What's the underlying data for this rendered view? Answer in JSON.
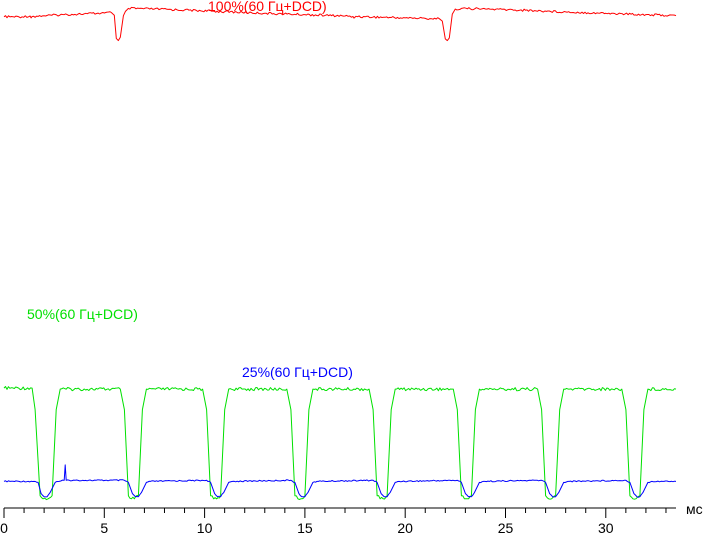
{
  "chart_data": {
    "type": "line",
    "xlabel": "мс",
    "xlim": [
      0,
      33.5
    ],
    "x_ticks": [
      "0",
      "5",
      "10",
      "15",
      "20",
      "25",
      "30"
    ],
    "grid": false,
    "series": [
      {
        "name": "100%(60 Гц+DCD)",
        "color": "#ff0000",
        "points": [
          [
            0,
            18.0
          ],
          [
            0.9,
            18.0
          ],
          [
            1.3,
            18.15
          ],
          [
            1.35,
            17.8
          ],
          [
            1.4,
            18.05
          ],
          [
            2.0,
            18.2
          ],
          [
            3.0,
            18.4
          ],
          [
            4.0,
            18.55
          ],
          [
            5.0,
            18.7
          ],
          [
            5.35,
            18.8
          ],
          [
            5.5,
            18.3
          ],
          [
            5.6,
            14.0
          ],
          [
            5.7,
            13.6
          ],
          [
            5.8,
            14.2
          ],
          [
            5.95,
            18.2
          ],
          [
            6.05,
            19.0
          ],
          [
            6.2,
            19.55
          ],
          [
            7.5,
            19.45
          ],
          [
            9.0,
            19.25
          ],
          [
            11.0,
            18.95
          ],
          [
            13.0,
            18.65
          ],
          [
            15.0,
            18.4
          ],
          [
            17.0,
            18.15
          ],
          [
            17.4,
            18.05
          ],
          [
            17.45,
            17.75
          ],
          [
            17.55,
            18.1
          ],
          [
            18.0,
            18.0
          ],
          [
            19.0,
            17.9
          ],
          [
            20.0,
            17.8
          ],
          [
            21.0,
            17.7
          ],
          [
            21.7,
            17.65
          ],
          [
            21.85,
            17.2
          ],
          [
            22.0,
            13.9
          ],
          [
            22.1,
            13.6
          ],
          [
            22.2,
            14.1
          ],
          [
            22.35,
            18.5
          ],
          [
            22.5,
            19.45
          ],
          [
            22.8,
            19.55
          ],
          [
            24.0,
            19.45
          ],
          [
            26.0,
            19.2
          ],
          [
            28.0,
            18.9
          ],
          [
            30.0,
            18.65
          ],
          [
            32.0,
            18.4
          ],
          [
            33.5,
            18.2
          ]
        ]
      },
      {
        "name": "50%(60 Гц+DCD)",
        "color": "#00e000",
        "points": [
          [
            0,
            5.85
          ],
          [
            1.4,
            5.85
          ],
          [
            1.55,
            4.8
          ],
          [
            1.8,
            0.6
          ],
          [
            1.95,
            0.45
          ],
          [
            2.2,
            0.45
          ],
          [
            2.4,
            0.6
          ],
          [
            2.6,
            4.8
          ],
          [
            2.8,
            5.8
          ],
          [
            5.8,
            5.8
          ],
          [
            6.0,
            4.8
          ],
          [
            6.2,
            0.6
          ],
          [
            6.35,
            0.45
          ],
          [
            6.5,
            0.45
          ],
          [
            6.7,
            0.6
          ],
          [
            6.9,
            4.8
          ],
          [
            7.1,
            5.8
          ],
          [
            9.9,
            5.8
          ],
          [
            10.1,
            4.8
          ],
          [
            10.3,
            0.6
          ],
          [
            10.45,
            0.45
          ],
          [
            10.6,
            0.45
          ],
          [
            10.8,
            0.6
          ],
          [
            11.0,
            4.8
          ],
          [
            11.2,
            5.8
          ],
          [
            14.1,
            5.8
          ],
          [
            14.3,
            4.8
          ],
          [
            14.5,
            0.6
          ],
          [
            14.65,
            0.45
          ],
          [
            14.8,
            0.45
          ],
          [
            15.0,
            0.6
          ],
          [
            15.2,
            4.8
          ],
          [
            15.4,
            5.8
          ],
          [
            18.2,
            5.8
          ],
          [
            18.4,
            4.8
          ],
          [
            18.6,
            0.6
          ],
          [
            18.75,
            0.45
          ],
          [
            18.9,
            0.45
          ],
          [
            19.1,
            0.6
          ],
          [
            19.3,
            4.8
          ],
          [
            19.5,
            5.8
          ],
          [
            22.4,
            5.8
          ],
          [
            22.6,
            4.8
          ],
          [
            22.8,
            0.6
          ],
          [
            22.95,
            0.45
          ],
          [
            23.1,
            0.45
          ],
          [
            23.3,
            0.6
          ],
          [
            23.5,
            4.8
          ],
          [
            23.7,
            5.8
          ],
          [
            26.6,
            5.8
          ],
          [
            26.8,
            4.8
          ],
          [
            27.0,
            0.6
          ],
          [
            27.15,
            0.45
          ],
          [
            27.3,
            0.45
          ],
          [
            27.5,
            0.6
          ],
          [
            27.7,
            4.8
          ],
          [
            27.9,
            5.8
          ],
          [
            30.8,
            5.8
          ],
          [
            31.0,
            4.8
          ],
          [
            31.2,
            0.6
          ],
          [
            31.35,
            0.45
          ],
          [
            31.5,
            0.45
          ],
          [
            31.7,
            0.6
          ],
          [
            31.9,
            4.8
          ],
          [
            32.1,
            5.8
          ],
          [
            33.5,
            5.8
          ]
        ]
      },
      {
        "name": "25%(60 Гц+DCD)",
        "color": "#0000ff",
        "points": [
          [
            0,
            1.3
          ],
          [
            1.5,
            1.3
          ],
          [
            1.7,
            1.25
          ],
          [
            1.85,
            0.7
          ],
          [
            2.0,
            0.55
          ],
          [
            2.15,
            0.55
          ],
          [
            2.3,
            0.75
          ],
          [
            2.55,
            1.25
          ],
          [
            2.75,
            1.3
          ],
          [
            3.0,
            1.35
          ],
          [
            3.05,
            2.1
          ],
          [
            3.1,
            1.35
          ],
          [
            6.0,
            1.35
          ],
          [
            6.2,
            1.25
          ],
          [
            6.4,
            0.7
          ],
          [
            6.55,
            0.55
          ],
          [
            6.7,
            0.55
          ],
          [
            6.85,
            0.75
          ],
          [
            7.1,
            1.25
          ],
          [
            7.3,
            1.3
          ],
          [
            10.1,
            1.35
          ],
          [
            10.3,
            1.25
          ],
          [
            10.5,
            0.7
          ],
          [
            10.65,
            0.55
          ],
          [
            10.8,
            0.55
          ],
          [
            10.95,
            0.75
          ],
          [
            11.2,
            1.25
          ],
          [
            11.4,
            1.3
          ],
          [
            14.3,
            1.35
          ],
          [
            14.5,
            1.25
          ],
          [
            14.7,
            0.7
          ],
          [
            14.85,
            0.55
          ],
          [
            15.0,
            0.55
          ],
          [
            15.15,
            0.75
          ],
          [
            15.4,
            1.25
          ],
          [
            15.6,
            1.3
          ],
          [
            18.4,
            1.35
          ],
          [
            18.6,
            1.25
          ],
          [
            18.8,
            0.7
          ],
          [
            18.95,
            0.55
          ],
          [
            19.1,
            0.55
          ],
          [
            19.25,
            0.75
          ],
          [
            19.5,
            1.25
          ],
          [
            19.7,
            1.3
          ],
          [
            22.6,
            1.35
          ],
          [
            22.8,
            1.25
          ],
          [
            23.0,
            0.7
          ],
          [
            23.15,
            0.55
          ],
          [
            23.3,
            0.55
          ],
          [
            23.45,
            0.75
          ],
          [
            23.7,
            1.25
          ],
          [
            23.9,
            1.3
          ],
          [
            26.8,
            1.35
          ],
          [
            27.0,
            1.25
          ],
          [
            27.2,
            0.7
          ],
          [
            27.35,
            0.55
          ],
          [
            27.5,
            0.55
          ],
          [
            27.65,
            0.75
          ],
          [
            27.9,
            1.25
          ],
          [
            28.1,
            1.3
          ],
          [
            31.0,
            1.35
          ],
          [
            31.2,
            1.25
          ],
          [
            31.4,
            0.7
          ],
          [
            31.55,
            0.55
          ],
          [
            31.7,
            0.55
          ],
          [
            31.85,
            0.75
          ],
          [
            32.1,
            1.25
          ],
          [
            32.3,
            1.3
          ],
          [
            33.5,
            1.3
          ]
        ]
      }
    ]
  }
}
